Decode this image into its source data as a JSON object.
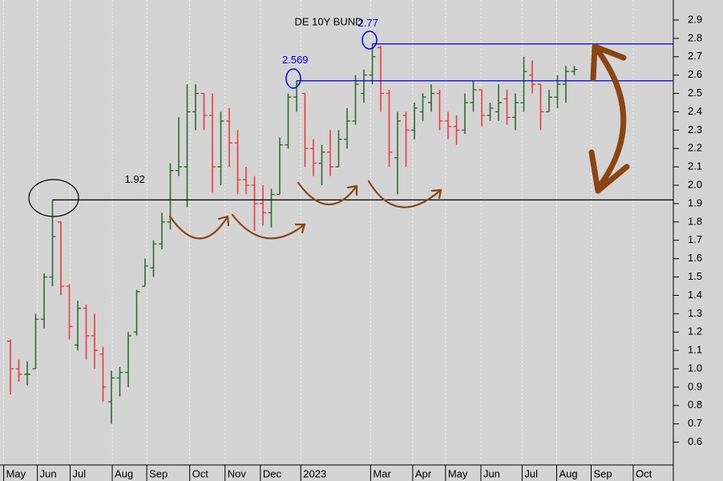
{
  "chart_data": {
    "type": "ohlc",
    "title": "DE 10Y BUND",
    "x": [
      0,
      1,
      2,
      3,
      4,
      5,
      6,
      7,
      8,
      9,
      10,
      11,
      12,
      13,
      14,
      15,
      16,
      17,
      18,
      19,
      20,
      21,
      22,
      23,
      24,
      25,
      26,
      27,
      28,
      29,
      30,
      31,
      32,
      33,
      34,
      35,
      36,
      37,
      38,
      39,
      40,
      41,
      42,
      43,
      44,
      45,
      46,
      47,
      48,
      49,
      50,
      51,
      52,
      53,
      54,
      55,
      56,
      57,
      58,
      59,
      60,
      61,
      62,
      63,
      64,
      65,
      66,
      67
    ],
    "open": [
      1.15,
      1.0,
      0.97,
      1.0,
      1.27,
      1.5,
      1.8,
      1.45,
      1.13,
      1.33,
      1.18,
      1.08,
      0.82,
      0.95,
      0.98,
      1.2,
      1.45,
      1.55,
      1.68,
      1.8,
      2.08,
      2.1,
      2.4,
      2.5,
      2.38,
      2.1,
      2.35,
      2.23,
      2.03,
      2.0,
      1.9,
      1.85,
      1.95,
      2.22,
      2.48,
      2.5,
      2.2,
      2.12,
      2.18,
      2.1,
      2.25,
      2.35,
      2.5,
      2.6,
      2.75,
      2.5,
      2.15,
      2.38,
      2.3,
      2.4,
      2.45,
      2.5,
      2.35,
      2.32,
      2.3,
      2.45,
      2.52,
      2.38,
      2.4,
      2.47,
      2.37,
      2.45,
      2.6,
      2.55,
      2.4,
      2.48,
      2.55,
      2.62
    ],
    "high": [
      1.16,
      1.05,
      1.04,
      1.3,
      1.52,
      1.92,
      1.8,
      1.46,
      1.37,
      1.35,
      1.3,
      1.12,
      0.99,
      1.01,
      1.2,
      1.43,
      1.6,
      1.7,
      1.85,
      2.12,
      2.37,
      2.55,
      2.55,
      2.5,
      2.5,
      2.4,
      2.42,
      2.3,
      2.1,
      2.05,
      2.0,
      1.98,
      2.26,
      2.5,
      2.569,
      2.5,
      2.25,
      2.22,
      2.3,
      2.3,
      2.42,
      2.6,
      2.63,
      2.77,
      2.76,
      2.52,
      2.4,
      2.4,
      2.45,
      2.5,
      2.55,
      2.52,
      2.4,
      2.38,
      2.5,
      2.57,
      2.52,
      2.45,
      2.55,
      2.52,
      2.5,
      2.7,
      2.68,
      2.55,
      2.52,
      2.6,
      2.65,
      2.65
    ],
    "low": [
      0.86,
      0.93,
      0.91,
      1.0,
      1.22,
      1.45,
      1.4,
      1.16,
      1.1,
      1.05,
      1.0,
      0.82,
      0.7,
      0.85,
      0.9,
      1.18,
      1.45,
      1.5,
      1.65,
      1.76,
      2.05,
      1.88,
      2.3,
      2.3,
      1.96,
      2.0,
      2.1,
      1.95,
      1.95,
      1.75,
      1.78,
      1.77,
      1.95,
      2.2,
      2.4,
      2.1,
      2.05,
      2.0,
      2.05,
      2.1,
      2.2,
      2.33,
      2.45,
      2.55,
      2.4,
      2.1,
      1.95,
      2.1,
      2.25,
      2.35,
      2.4,
      2.3,
      2.25,
      2.22,
      2.28,
      2.4,
      2.32,
      2.35,
      2.35,
      2.33,
      2.3,
      2.4,
      2.5,
      2.3,
      2.4,
      2.42,
      2.45,
      2.6
    ],
    "close": [
      1.0,
      0.97,
      0.97,
      1.27,
      1.5,
      1.72,
      1.45,
      1.23,
      1.33,
      1.18,
      1.1,
      0.9,
      0.95,
      0.98,
      1.18,
      1.42,
      1.56,
      1.68,
      1.8,
      2.08,
      2.1,
      2.4,
      2.5,
      2.38,
      2.1,
      2.35,
      2.23,
      2.03,
      2.0,
      1.9,
      1.85,
      1.95,
      2.22,
      2.48,
      2.55,
      2.2,
      2.12,
      2.18,
      2.1,
      2.25,
      2.35,
      2.55,
      2.6,
      2.7,
      2.5,
      2.18,
      2.35,
      2.3,
      2.42,
      2.48,
      2.5,
      2.35,
      2.32,
      2.3,
      2.45,
      2.52,
      2.38,
      2.42,
      2.45,
      2.37,
      2.45,
      2.62,
      2.55,
      2.4,
      2.48,
      2.55,
      2.62,
      2.63
    ],
    "up_color": "#2f6b2f",
    "down_color": "#ec3b3f",
    "xlim": [
      -1,
      79
    ],
    "xticks": [
      {
        "value": -0.8,
        "label": "May"
      },
      {
        "value": 3.2,
        "label": "Jun"
      },
      {
        "value": 7.1,
        "label": "Jul"
      },
      {
        "value": 12.1,
        "label": "Aug"
      },
      {
        "value": 16.2,
        "label": "Sep"
      },
      {
        "value": 21.3,
        "label": "Oct"
      },
      {
        "value": 25.5,
        "label": "Nov"
      },
      {
        "value": 29.7,
        "label": "Dec"
      },
      {
        "value": 34.5,
        "label": "2023"
      },
      {
        "value": 42.8,
        "label": "Mar"
      },
      {
        "value": 47.8,
        "label": "Apr"
      },
      {
        "value": 51.7,
        "label": "May"
      },
      {
        "value": 55.9,
        "label": "Jun"
      },
      {
        "value": 60.8,
        "label": "Jul"
      },
      {
        "value": 64.9,
        "label": "Aug"
      },
      {
        "value": 69.0,
        "label": "Sep"
      },
      {
        "value": 74.0,
        "label": "Oct"
      }
    ],
    "ylim": [
      0.476,
      3.009
    ],
    "yticks": [
      0.6,
      0.7,
      0.8,
      0.9,
      {
        "value": 1,
        "label": "1.0"
      },
      1.1,
      1.2,
      1.3,
      1.4,
      1.5,
      1.6,
      1.7,
      1.8,
      1.9,
      {
        "value": 2,
        "label": "2.0"
      },
      2.1,
      2.2,
      2.3,
      2.4,
      2.5,
      2.6,
      2.7,
      2.8,
      2.9
    ],
    "grid": true,
    "annotations": [
      {
        "value": 1.92,
        "label": "1.92",
        "x": 5,
        "color": "#000000"
      },
      {
        "value": 2.569,
        "label": "2.569",
        "x": 34,
        "color": "#0000ee"
      },
      {
        "value": 2.77,
        "label": "2.77",
        "x": 43,
        "color": "#0000ee"
      }
    ]
  }
}
